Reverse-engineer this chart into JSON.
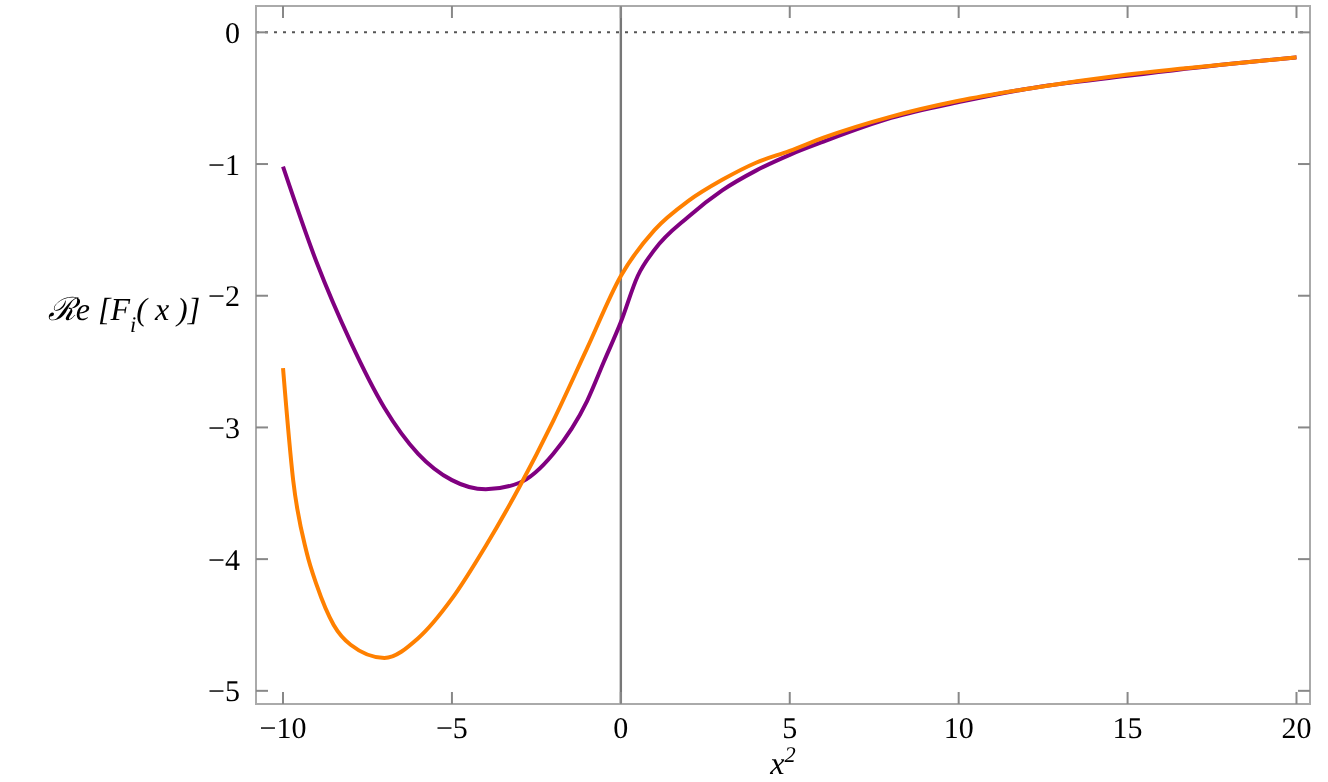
{
  "chart_data": {
    "type": "line",
    "xlabel": "x$^{2}$",
    "ylabel": "ℛe [F$_{i}$( x )]",
    "xlim": [
      -10.8,
      20.4
    ],
    "ylim": [
      -5.1,
      0.2
    ],
    "xticks": [
      -10,
      -5,
      0,
      5,
      10,
      15,
      20
    ],
    "yticks": [
      0,
      -1,
      -2,
      -3,
      -4,
      -5
    ],
    "grid": false,
    "marker": "none",
    "line_style": "solid",
    "ref_lines": [
      {
        "axis": "y",
        "value": 0,
        "color": "#555555",
        "line_style": "dotted"
      },
      {
        "axis": "x",
        "value": 0,
        "color": "#777777",
        "line_style": "solid"
      }
    ],
    "series": [
      {
        "color": "#800080",
        "x": [
          -10,
          -9,
          -8,
          -7,
          -6,
          -5,
          -4,
          -3,
          -2,
          -1,
          -0.5,
          0,
          0.5,
          1,
          2,
          3,
          4,
          5,
          6,
          8,
          10,
          12,
          15,
          18,
          20
        ],
        "values": [
          -1.02,
          -1.75,
          -2.35,
          -2.85,
          -3.2,
          -3.4,
          -3.47,
          -3.42,
          -3.2,
          -2.8,
          -2.5,
          -2.2,
          -1.85,
          -1.65,
          -1.4,
          -1.2,
          -1.05,
          -0.93,
          -0.83,
          -0.65,
          -0.53,
          -0.43,
          -0.33,
          -0.24,
          -0.19
        ]
      },
      {
        "color": "#ff8000",
        "x": [
          -10,
          -9.7,
          -9.3,
          -9,
          -8.5,
          -8,
          -7,
          -6,
          -5,
          -4,
          -3,
          -2,
          -1,
          0,
          1,
          2,
          3,
          4,
          5,
          6,
          8,
          10,
          12,
          15,
          18,
          20
        ],
        "values": [
          -2.55,
          -3.4,
          -3.95,
          -4.2,
          -4.5,
          -4.65,
          -4.75,
          -4.6,
          -4.3,
          -3.9,
          -3.45,
          -2.95,
          -2.4,
          -1.85,
          -1.5,
          -1.28,
          -1.12,
          -0.99,
          -0.9,
          -0.8,
          -0.64,
          -0.52,
          -0.43,
          -0.32,
          -0.24,
          -0.19
        ]
      }
    ]
  }
}
